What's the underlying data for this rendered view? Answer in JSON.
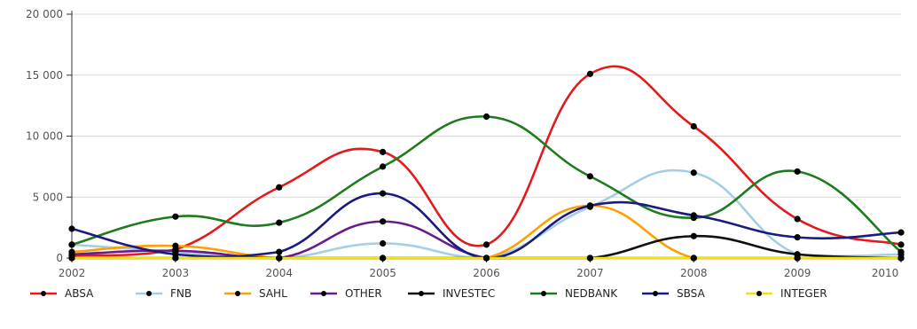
{
  "chart_data": {
    "type": "line",
    "x": [
      "2002",
      "2003",
      "2004",
      "2005",
      "2006",
      "2007",
      "2008",
      "2009",
      "2010"
    ],
    "ylim": [
      0,
      20000
    ],
    "yticks": [
      0,
      5000,
      10000,
      15000,
      20000
    ],
    "ytick_labels": [
      "0",
      "5 000",
      "10 000",
      "15 000",
      "20 000"
    ],
    "grid": true,
    "legend_position": "bottom",
    "series": [
      {
        "name": "ABSA",
        "color": "#e31a1c",
        "values": [
          200,
          700,
          5800,
          8700,
          1100,
          15100,
          10800,
          3200,
          1100
        ]
      },
      {
        "name": "FNB",
        "color": "#a6cee3",
        "values": [
          1100,
          500,
          0,
          1200,
          0,
          4200,
          7000,
          300,
          300
        ]
      },
      {
        "name": "SAHL",
        "color": "#ff9f00",
        "values": [
          500,
          1000,
          0,
          0,
          0,
          4300,
          0,
          0,
          0
        ]
      },
      {
        "name": "OTHER",
        "color": "#6a1b8a",
        "values": [
          300,
          600,
          0,
          3000,
          0,
          0,
          0,
          0,
          0
        ]
      },
      {
        "name": "INVESTEC",
        "color": "#111111",
        "values": [
          0,
          0,
          0,
          0,
          0,
          0,
          1800,
          300,
          0
        ]
      },
      {
        "name": "NEDBANK",
        "color": "#1e7b1e",
        "values": [
          1100,
          3400,
          2900,
          7500,
          11600,
          6700,
          3300,
          7100,
          500
        ]
      },
      {
        "name": "SBSA",
        "color": "#1a1a80",
        "values": [
          2400,
          300,
          500,
          5300,
          0,
          4300,
          3500,
          1700,
          2100
        ]
      },
      {
        "name": "INTEGER",
        "color": "#f2e600",
        "values": [
          0,
          0,
          0,
          0,
          0,
          0,
          0,
          0,
          0
        ]
      }
    ]
  }
}
